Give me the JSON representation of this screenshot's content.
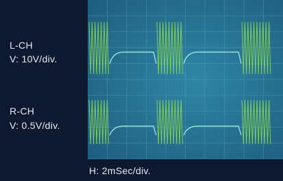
{
  "labels": {
    "left_channel": "L-CH",
    "left_scale": "V: 10V/div.",
    "right_channel": "R-CH",
    "right_scale": "V: 0.5V/div.",
    "horizontal_scale": "H: 2mSec/div."
  }
}
